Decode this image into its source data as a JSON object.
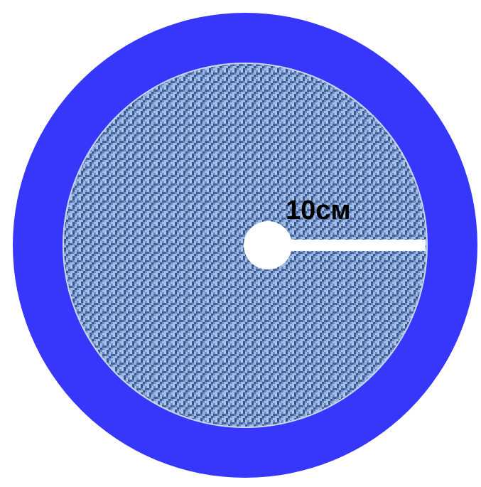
{
  "diagram": {
    "radius_label": "10см",
    "colors": {
      "outer_ring": "#3737fb",
      "fabric_base": "#6f8fc4",
      "fabric_light": "#a9c3ee",
      "fabric_dark": "#2f4f86",
      "center_hole": "#ffffff",
      "radius_line": "#ffffff",
      "label_text": "#000000",
      "inner_border": "#c8d6f0"
    }
  }
}
